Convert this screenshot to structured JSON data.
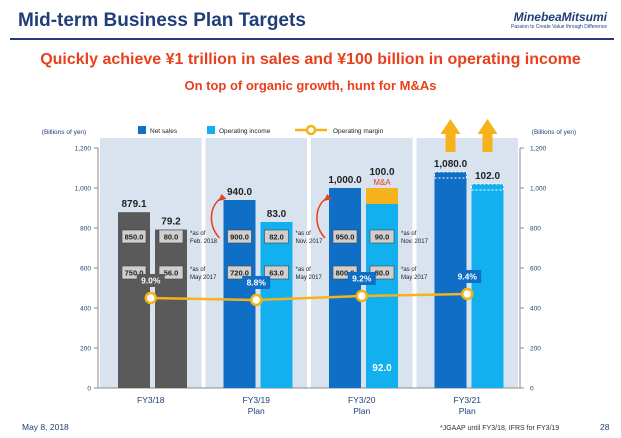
{
  "header": {
    "title": "Mid-term Business Plan Targets",
    "brand": "MinebeaMitsumi",
    "tagline": "Passion to Create Value through Difference"
  },
  "headline": "Quickly achieve ¥1 trillion in sales and ¥100 billion in operating income",
  "subheadline": "On top of organic growth, hunt for M&As",
  "footer": {
    "date": "May 8, 2018",
    "note": "*JGAAP until FY3/18, IFRS for FY3/19",
    "page": "28"
  },
  "colors": {
    "title": "#1f3e7a",
    "headline": "#e8401c",
    "net_sales": "#0f6fc6",
    "operating_income": "#12b0ee",
    "fy18_bar": "#5a5a5a",
    "margin_line": "#f5b21b",
    "background_band": "#d9e3ef",
    "ma_segment": "#f5b21b",
    "arrow": "#f5b21b"
  },
  "chart_data": {
    "type": "bar",
    "title": "",
    "ylabel_left": "(Billions of yen)",
    "ylabel_right": "(Billions of yen)",
    "ylim": [
      0,
      1200
    ],
    "y_ticks": [
      "0",
      "200",
      "400",
      "600",
      "800",
      "1,000",
      "1,200"
    ],
    "y_tick_values": [
      0,
      200,
      400,
      600,
      800,
      1000,
      1200
    ],
    "legend": {
      "net_sales": "Net sales",
      "operating_income": "Operating income",
      "operating_margin": "Operating margin"
    },
    "categories": [
      "FY3/18",
      "FY3/19 Plan",
      "FY3/20 Plan",
      "FY3/21 Plan"
    ],
    "category_lines": [
      [
        "FY3/18"
      ],
      [
        "FY3/19",
        "Plan"
      ],
      [
        "FY3/20",
        "Plan"
      ],
      [
        "FY3/21",
        "Plan"
      ]
    ],
    "series": [
      {
        "name": "Net sales",
        "values": [
          879.1,
          940.0,
          1000.0,
          1080.0
        ],
        "labels": [
          "879.1",
          "940.0",
          "1,000.0",
          "1,080.0"
        ]
      },
      {
        "name": "Operating income",
        "values": [
          79.2,
          83.0,
          92.0,
          102.0
        ],
        "labels": [
          "79.2",
          "83.0",
          "92.0",
          "102.0"
        ]
      }
    ],
    "ma_addition": {
      "label": "M&A",
      "total_label": "100.0",
      "total_value": 100.0,
      "base_value": 92.0
    },
    "operating_margin": {
      "values": [
        9.0,
        8.8,
        9.2,
        9.4
      ],
      "labels": [
        "9.0%",
        "8.8%",
        "9.2%",
        "9.4%"
      ]
    },
    "margin_scale_percent": [
      0,
      24
    ],
    "annotations": [
      {
        "group": 0,
        "net_sales": [
          {
            "value": 850,
            "label": "850.0"
          },
          {
            "value": 750,
            "label": "750.0"
          }
        ],
        "operating_income": [
          {
            "value": 80,
            "label": "80.0"
          },
          {
            "value": 56,
            "label": "56.0"
          }
        ],
        "notes": [
          [
            "*as of",
            "Feb. 2018"
          ],
          [
            "*as of",
            "May 2017"
          ]
        ]
      },
      {
        "group": 1,
        "net_sales": [
          {
            "value": 900,
            "label": "900.0"
          },
          {
            "value": 720,
            "label": "720.0"
          }
        ],
        "operating_income": [
          {
            "value": 82,
            "label": "82.0"
          },
          {
            "value": 63,
            "label": "63.0"
          }
        ],
        "notes": [
          [
            "*as of",
            "Nov. 2017"
          ],
          [
            "*as of",
            "May 2017"
          ]
        ]
      },
      {
        "group": 2,
        "net_sales": [
          {
            "value": 950,
            "label": "950.0"
          },
          {
            "value": 800,
            "label": "800.0"
          }
        ],
        "operating_income": [
          {
            "value": 90,
            "label": "90.0"
          },
          {
            "value": 80,
            "label": "80.0"
          }
        ],
        "notes": [
          [
            "*as of",
            "Nov. 2017"
          ],
          [
            "*as of",
            "May 2017"
          ]
        ]
      }
    ]
  }
}
